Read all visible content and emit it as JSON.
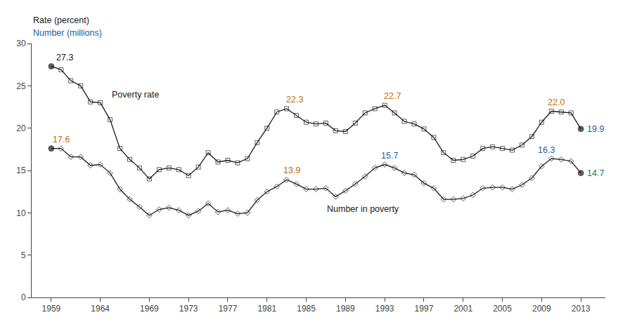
{
  "chart_data": {
    "type": "line",
    "ylabels": [
      {
        "text": "Rate (percent)",
        "color": "#1a1a1a"
      },
      {
        "text": "Number (millions)",
        "color": "#1a5fa8"
      }
    ],
    "x": [
      1959,
      1960,
      1961,
      1962,
      1963,
      1964,
      1965,
      1966,
      1967,
      1968,
      1969,
      1970,
      1971,
      1972,
      1973,
      1974,
      1975,
      1976,
      1977,
      1978,
      1979,
      1980,
      1981,
      1982,
      1983,
      1984,
      1985,
      1986,
      1987,
      1988,
      1989,
      1990,
      1991,
      1992,
      1993,
      1994,
      1995,
      1996,
      1997,
      1998,
      1999,
      2000,
      2001,
      2002,
      2003,
      2004,
      2005,
      2006,
      2007,
      2008,
      2009,
      2010,
      2011,
      2012,
      2013
    ],
    "series": [
      {
        "name": "Poverty rate",
        "color": "#1a1a1a",
        "marker": "square",
        "values": [
          27.3,
          26.9,
          25.6,
          25.0,
          23.1,
          23.0,
          21.0,
          17.6,
          16.3,
          15.3,
          14.0,
          15.1,
          15.3,
          15.1,
          14.4,
          15.4,
          17.1,
          16.0,
          16.2,
          15.9,
          16.4,
          18.3,
          20.0,
          21.9,
          22.3,
          21.5,
          20.7,
          20.5,
          20.6,
          19.7,
          19.6,
          20.6,
          21.8,
          22.3,
          22.7,
          21.8,
          20.8,
          20.5,
          19.9,
          18.9,
          17.1,
          16.2,
          16.3,
          16.7,
          17.6,
          17.8,
          17.6,
          17.4,
          18.0,
          19.0,
          20.7,
          22.0,
          21.9,
          21.8,
          19.9
        ]
      },
      {
        "name": "Number in poverty",
        "color": "#1a1a1a",
        "marker": "diamond",
        "values": [
          17.6,
          17.6,
          16.6,
          16.6,
          15.6,
          15.7,
          14.7,
          12.8,
          11.6,
          10.7,
          9.7,
          10.4,
          10.6,
          10.3,
          9.7,
          10.2,
          11.1,
          10.1,
          10.3,
          9.9,
          10.0,
          11.5,
          12.5,
          13.1,
          13.9,
          13.4,
          12.8,
          12.8,
          12.9,
          11.9,
          12.6,
          13.4,
          14.3,
          15.3,
          15.7,
          15.3,
          14.7,
          14.5,
          13.5,
          12.9,
          11.6,
          11.6,
          11.7,
          12.1,
          12.9,
          13.0,
          13.0,
          12.8,
          13.3,
          14.1,
          15.5,
          16.4,
          16.3,
          16.1,
          14.7
        ]
      }
    ],
    "annotations": [
      {
        "text": "27.3",
        "x": 1959.4,
        "y": 27.3,
        "color": "#1a1a1a"
      },
      {
        "text": "22.3",
        "x": 1982.8,
        "y": 22.3,
        "color": "#c8680c"
      },
      {
        "text": "22.7",
        "x": 1992.8,
        "y": 22.7,
        "color": "#c8680c"
      },
      {
        "text": "22.0",
        "x": 2009.5,
        "y": 22.0,
        "color": "#c8680c"
      },
      {
        "text": "19.9",
        "x": 2013.5,
        "y": 19.9,
        "color": "#1a5fa8"
      },
      {
        "text": "17.6",
        "x": 1959.0,
        "y": 17.6,
        "color": "#c8680c"
      },
      {
        "text": "13.9",
        "x": 1982.5,
        "y": 13.9,
        "color": "#c8680c"
      },
      {
        "text": "15.7",
        "x": 1992.5,
        "y": 15.7,
        "color": "#1a5fa8"
      },
      {
        "text": "16.3",
        "x": 2008.5,
        "y": 16.3,
        "color": "#1a5fa8"
      },
      {
        "text": "14.7",
        "x": 2013.5,
        "y": 14.7,
        "color": "#1a7a3e"
      }
    ],
    "xlim": [
      1957,
      2015.5
    ],
    "xticks": [
      1959,
      1964,
      1969,
      1973,
      1977,
      1981,
      1985,
      1989,
      1993,
      1997,
      2001,
      2005,
      2009,
      2013
    ],
    "ylim": [
      0,
      30
    ],
    "yticks": [
      0,
      5,
      10,
      15,
      20,
      25,
      30
    ],
    "grid": false
  }
}
